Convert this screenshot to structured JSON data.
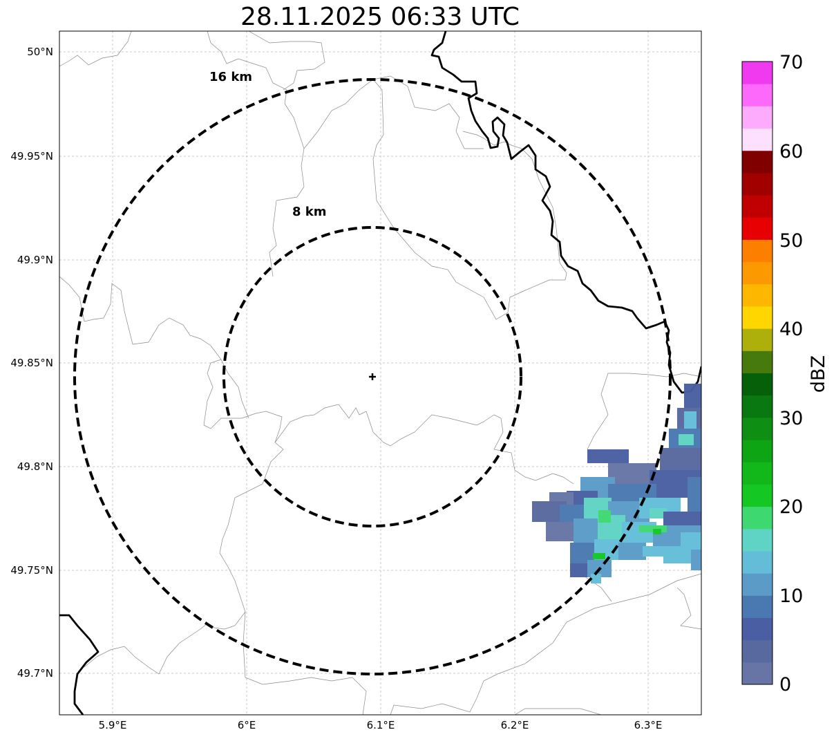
{
  "title": "28.11.2025 06:33 UTC",
  "axes": {
    "lat_ticks": [
      "50°N",
      "49.95°N",
      "49.9°N",
      "49.85°N",
      "49.8°N",
      "49.75°N",
      "49.7°N"
    ],
    "lon_ticks": [
      "5.9°E",
      "6°E",
      "6.1°E",
      "6.2°E",
      "6.3°E"
    ],
    "gridlines": true
  },
  "range_rings": [
    {
      "label": "16 km",
      "radius_km": 16
    },
    {
      "label": "8 km",
      "radius_km": 8
    }
  ],
  "radar_site": {
    "lat": 49.843,
    "lon": 6.095,
    "marker": "plus-icon"
  },
  "colorbar": {
    "label": "dBZ",
    "tick_labels": [
      "0",
      "10",
      "20",
      "30",
      "40",
      "50",
      "60",
      "70"
    ],
    "colors": [
      "#6675a6",
      "#5869a0",
      "#4a5fa3",
      "#4a78b1",
      "#5a9bc8",
      "#64bdd8",
      "#60d4c4",
      "#3dd870",
      "#14c723",
      "#12b81a",
      "#0ea514",
      "#0e8e12",
      "#0a7810",
      "#066009",
      "#477a0c",
      "#adb00a",
      "#ffd600",
      "#fdb700",
      "#fc9900",
      "#fc7f00",
      "#e60000",
      "#c00000",
      "#a00000",
      "#800000",
      "#fde0ff",
      "#fdacfd",
      "#fd6afb",
      "#f03af0"
    ]
  }
}
